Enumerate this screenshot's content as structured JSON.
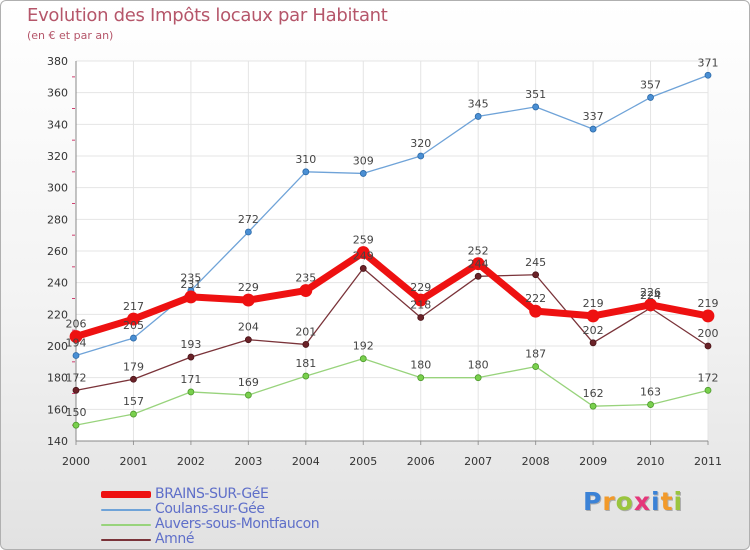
{
  "title": "Evolution des Impôts locaux par Habitant",
  "subtitle": "(en € et par an)",
  "logo": {
    "text": "Proxiti",
    "colors": [
      "#3b82d6",
      "#f29a2a",
      "#9ac53e",
      "#e5367a",
      "#3b82d6",
      "#f29a2a",
      "#9ac53e"
    ]
  },
  "chart_data": {
    "type": "line",
    "categories": [
      "2000",
      "2001",
      "2002",
      "2003",
      "2004",
      "2005",
      "2006",
      "2007",
      "2008",
      "2009",
      "2010",
      "2011"
    ],
    "ylim": [
      140,
      380
    ],
    "yticks": [
      140,
      160,
      180,
      200,
      220,
      240,
      260,
      280,
      300,
      320,
      340,
      360,
      380
    ],
    "grid": true,
    "legend_position": "bottom-left",
    "series": [
      {
        "name": "Coulans-sur-Gée",
        "color": "#6fa3d8",
        "values": [
          194,
          205,
          235,
          272,
          310,
          309,
          320,
          345,
          351,
          337,
          357,
          371
        ],
        "labels": [
          "194",
          "205",
          "235",
          "272",
          "310",
          "309",
          "320",
          "345",
          "351",
          "337",
          "357",
          "371"
        ]
      },
      {
        "name": "Auvers-sous-Montfaucon",
        "color": "#98d37c",
        "values": [
          150,
          157,
          171,
          169,
          181,
          192,
          180,
          180,
          187,
          162,
          163,
          172
        ],
        "labels": [
          "150",
          "157",
          "171",
          "169",
          "181",
          "192",
          "180",
          "180",
          "187",
          "162",
          "163",
          "172"
        ]
      },
      {
        "name": "Amné",
        "color": "#7a3339",
        "values": [
          172,
          179,
          193,
          204,
          201,
          249,
          218,
          244,
          245,
          202,
          224,
          200
        ],
        "labels": [
          "172",
          "179",
          "193",
          "204",
          "201",
          "249",
          "218",
          "244",
          "245",
          "202",
          "224",
          "200"
        ]
      },
      {
        "name": "BRAINS-SUR-GéE",
        "color": "#ee1111",
        "values": [
          206,
          217,
          231,
          229,
          235,
          259,
          229,
          252,
          222,
          219,
          226,
          219
        ],
        "labels": [
          "206",
          "217",
          "231",
          "229",
          "235",
          "259",
          "229",
          "252",
          "222",
          "219",
          "226",
          "219"
        ]
      }
    ]
  },
  "legend": [
    {
      "label": "BRAINS-SUR-GéE",
      "color": "#ee1111"
    },
    {
      "label": "Coulans-sur-Gée",
      "color": "#6fa3d8"
    },
    {
      "label": "Auvers-sous-Montfaucon",
      "color": "#98d37c"
    },
    {
      "label": "Amné",
      "color": "#7a3339"
    }
  ]
}
